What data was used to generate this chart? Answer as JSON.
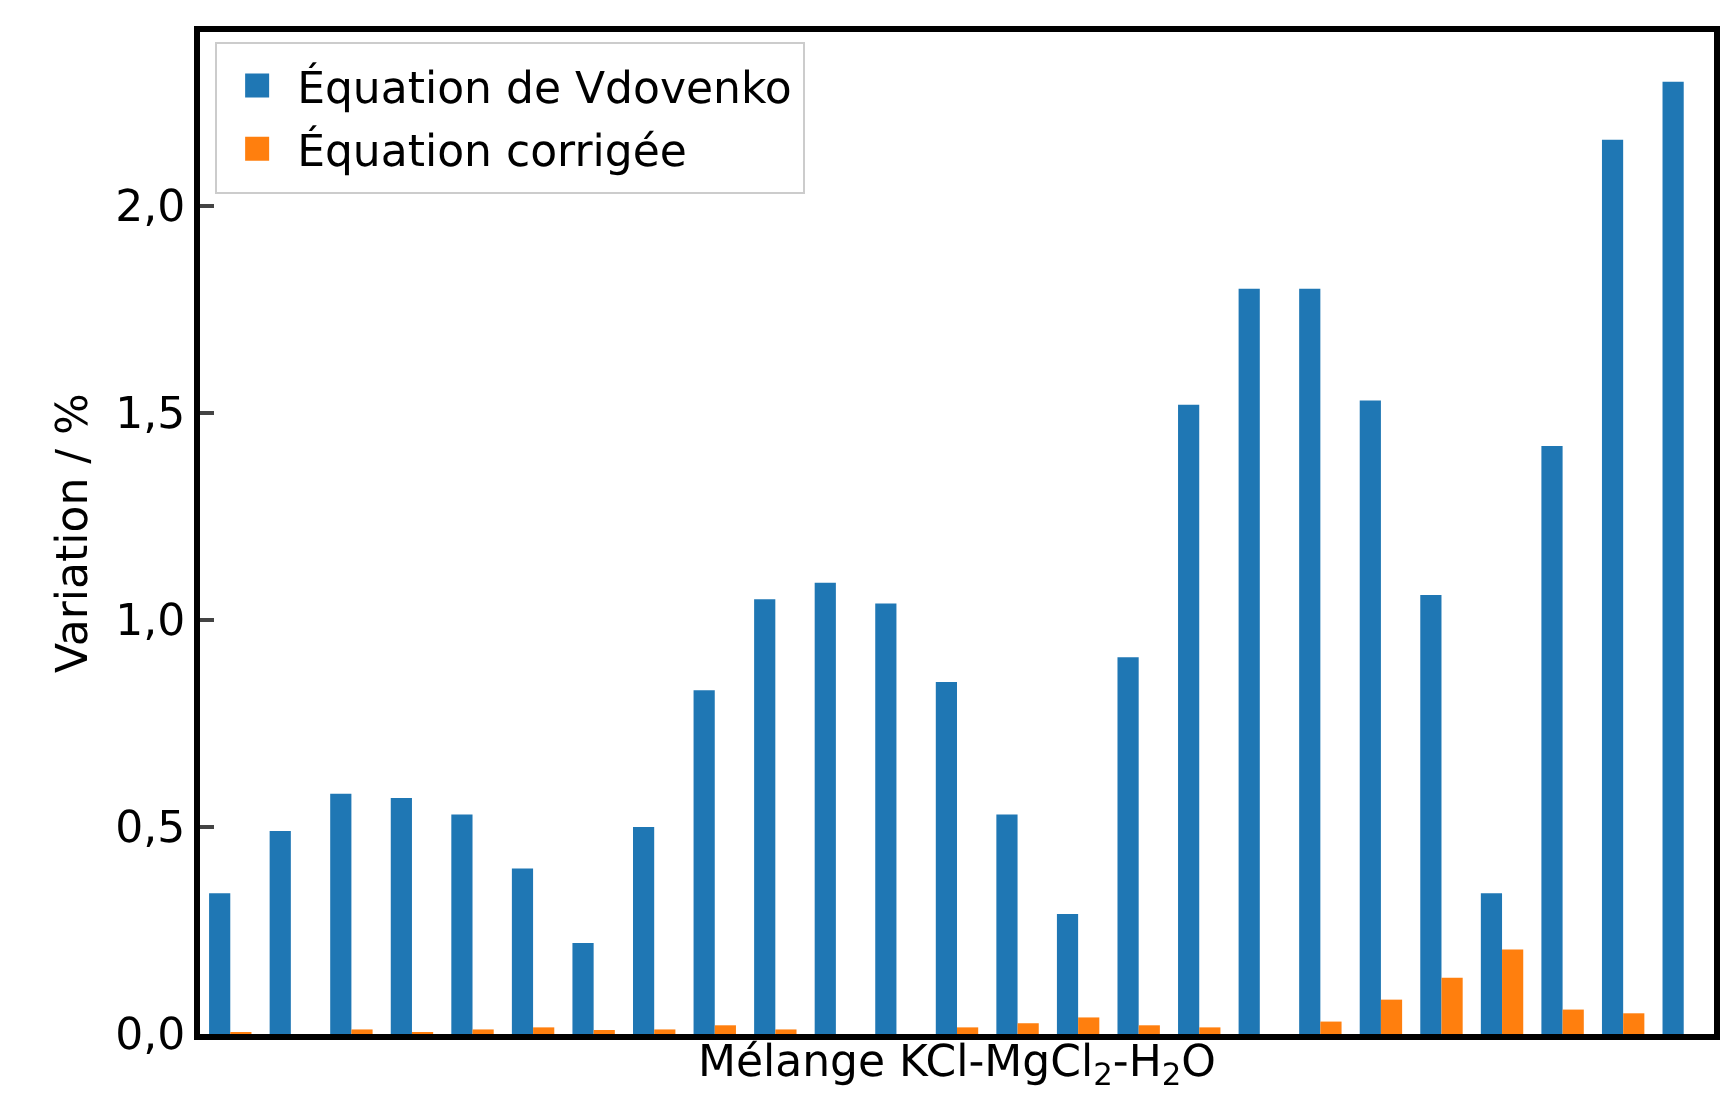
{
  "chart_data": {
    "type": "bar",
    "xlabel": "Mélange KCl-MgCl$_{2}$-H$_{2}$O",
    "ylabel": "Variation / %",
    "categories": [
      null,
      null,
      null,
      null,
      null,
      null,
      null,
      null,
      null,
      null,
      null,
      null,
      null,
      null,
      null,
      null,
      null,
      null,
      null,
      null,
      null,
      null,
      null,
      null,
      null
    ],
    "series": [
      {
        "name": "Équation de Vdovenko",
        "color": "#1f77b4",
        "values": [
          0.34,
          0.49,
          0.58,
          0.57,
          0.53,
          0.4,
          0.22,
          0.5,
          0.83,
          1.05,
          1.09,
          1.04,
          0.85,
          0.53,
          0.29,
          0.91,
          1.52,
          1.8,
          1.8,
          1.53,
          1.06,
          0.34,
          1.42,
          2.16,
          2.3
        ]
      },
      {
        "name": "Équation corrigée",
        "color": "#ff7f0e",
        "values": [
          0.003,
          null,
          0.011,
          0.003,
          0.011,
          0.016,
          0.006,
          0.011,
          0.021,
          0.011,
          null,
          null,
          0.016,
          0.026,
          0.04,
          0.021,
          0.016,
          null,
          0.03,
          0.083,
          0.136,
          0.204,
          0.059,
          0.05,
          null
        ]
      }
    ],
    "ylim": [
      0,
      2.42
    ],
    "yticks": [
      {
        "value": 0,
        "label": "0,0"
      },
      {
        "value": 0.5,
        "label": "0,5"
      },
      {
        "value": 1.0,
        "label": "1,0"
      },
      {
        "value": 1.5,
        "label": "1,5"
      },
      {
        "value": 2.0,
        "label": "2,0"
      }
    ],
    "legend": "top left",
    "tick_labels": "y"
  }
}
